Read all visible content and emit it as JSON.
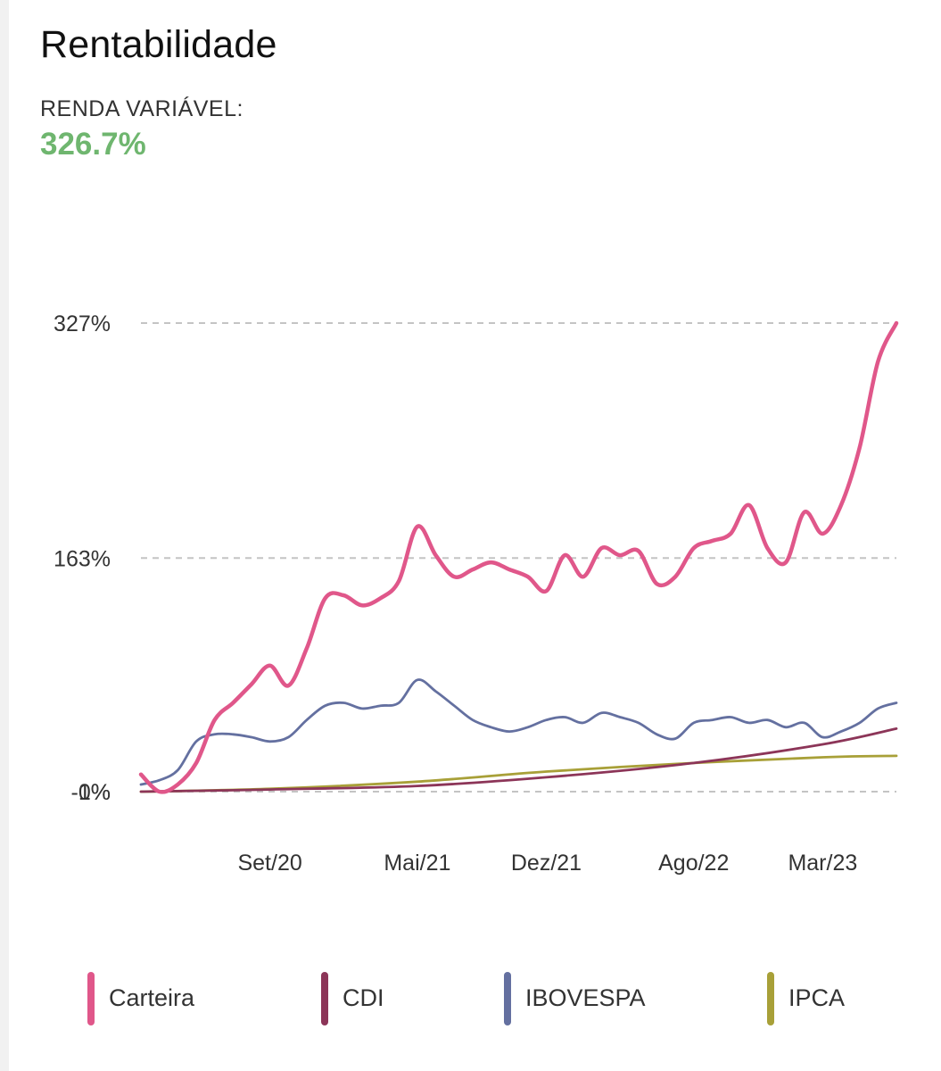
{
  "header": {
    "title": "Rentabilidade",
    "subtitle": "RENDA VARIÁVEL:",
    "metric_value": "326.7%",
    "metric_color": "#6fb66f"
  },
  "chart_data": {
    "type": "line",
    "title": "Rentabilidade",
    "xlabel": "",
    "ylabel": "",
    "y_ticks": [
      {
        "label": "327%",
        "value": 327
      },
      {
        "label": "163%",
        "value": 163
      },
      {
        "label": "0%",
        "value": 0
      },
      {
        "label": "-1%",
        "value": -1
      }
    ],
    "ylim": [
      -1,
      327
    ],
    "x_range": [
      "2020-02",
      "2023-07"
    ],
    "x_ticks": [
      {
        "label": "Set/20",
        "date": "2020-09"
      },
      {
        "label": "Mai/21",
        "date": "2021-05"
      },
      {
        "label": "Dez/21",
        "date": "2021-12"
      },
      {
        "label": "Ago/22",
        "date": "2022-08"
      },
      {
        "label": "Mar/23",
        "date": "2023-03"
      }
    ],
    "grid": "horizontal-dashed",
    "legend_position": "bottom",
    "series": [
      {
        "name": "Carteira",
        "color": "#e0578a",
        "points": [
          [
            "2020-02",
            12
          ],
          [
            "2020-03",
            0
          ],
          [
            "2020-04",
            5
          ],
          [
            "2020-05",
            20
          ],
          [
            "2020-06",
            50
          ],
          [
            "2020-07",
            62
          ],
          [
            "2020-08",
            75
          ],
          [
            "2020-09",
            88
          ],
          [
            "2020-10",
            74
          ],
          [
            "2020-11",
            100
          ],
          [
            "2020-12",
            135
          ],
          [
            "2021-01",
            137
          ],
          [
            "2021-02",
            130
          ],
          [
            "2021-03",
            135
          ],
          [
            "2021-04",
            147
          ],
          [
            "2021-05",
            185
          ],
          [
            "2021-06",
            165
          ],
          [
            "2021-07",
            150
          ],
          [
            "2021-08",
            155
          ],
          [
            "2021-09",
            160
          ],
          [
            "2021-10",
            155
          ],
          [
            "2021-11",
            150
          ],
          [
            "2021-12",
            140
          ],
          [
            "2022-01",
            165
          ],
          [
            "2022-02",
            150
          ],
          [
            "2022-03",
            170
          ],
          [
            "2022-04",
            165
          ],
          [
            "2022-05",
            168
          ],
          [
            "2022-06",
            145
          ],
          [
            "2022-07",
            150
          ],
          [
            "2022-08",
            170
          ],
          [
            "2022-09",
            175
          ],
          [
            "2022-10",
            180
          ],
          [
            "2022-11",
            200
          ],
          [
            "2022-12",
            170
          ],
          [
            "2023-01",
            160
          ],
          [
            "2023-02",
            195
          ],
          [
            "2023-03",
            180
          ],
          [
            "2023-04",
            200
          ],
          [
            "2023-05",
            240
          ],
          [
            "2023-06",
            300
          ],
          [
            "2023-07",
            327
          ]
        ]
      },
      {
        "name": "CDI",
        "color": "#8c3558",
        "points": [
          [
            "2020-02",
            0
          ],
          [
            "2020-09",
            1.5
          ],
          [
            "2021-05",
            4
          ],
          [
            "2021-12",
            10
          ],
          [
            "2022-08",
            20
          ],
          [
            "2023-03",
            33
          ],
          [
            "2023-07",
            44
          ]
        ]
      },
      {
        "name": "IBOVESPA",
        "color": "#6470a0",
        "points": [
          [
            "2020-02",
            5
          ],
          [
            "2020-03",
            8
          ],
          [
            "2020-04",
            15
          ],
          [
            "2020-05",
            35
          ],
          [
            "2020-06",
            40
          ],
          [
            "2020-07",
            40
          ],
          [
            "2020-08",
            38
          ],
          [
            "2020-09",
            35
          ],
          [
            "2020-10",
            38
          ],
          [
            "2020-11",
            50
          ],
          [
            "2020-12",
            60
          ],
          [
            "2021-01",
            62
          ],
          [
            "2021-02",
            58
          ],
          [
            "2021-03",
            60
          ],
          [
            "2021-04",
            62
          ],
          [
            "2021-05",
            78
          ],
          [
            "2021-06",
            70
          ],
          [
            "2021-07",
            60
          ],
          [
            "2021-08",
            50
          ],
          [
            "2021-09",
            45
          ],
          [
            "2021-10",
            42
          ],
          [
            "2021-11",
            45
          ],
          [
            "2021-12",
            50
          ],
          [
            "2022-01",
            52
          ],
          [
            "2022-02",
            48
          ],
          [
            "2022-03",
            55
          ],
          [
            "2022-04",
            52
          ],
          [
            "2022-05",
            48
          ],
          [
            "2022-06",
            40
          ],
          [
            "2022-07",
            37
          ],
          [
            "2022-08",
            48
          ],
          [
            "2022-09",
            50
          ],
          [
            "2022-10",
            52
          ],
          [
            "2022-11",
            48
          ],
          [
            "2022-12",
            50
          ],
          [
            "2023-01",
            45
          ],
          [
            "2023-02",
            48
          ],
          [
            "2023-03",
            38
          ],
          [
            "2023-04",
            42
          ],
          [
            "2023-05",
            48
          ],
          [
            "2023-06",
            58
          ],
          [
            "2023-07",
            62
          ]
        ]
      },
      {
        "name": "IPCA",
        "color": "#a8a038",
        "points": [
          [
            "2020-02",
            0
          ],
          [
            "2020-09",
            2
          ],
          [
            "2021-05",
            7
          ],
          [
            "2021-12",
            14
          ],
          [
            "2022-08",
            20
          ],
          [
            "2023-03",
            24
          ],
          [
            "2023-07",
            25
          ]
        ]
      }
    ]
  }
}
